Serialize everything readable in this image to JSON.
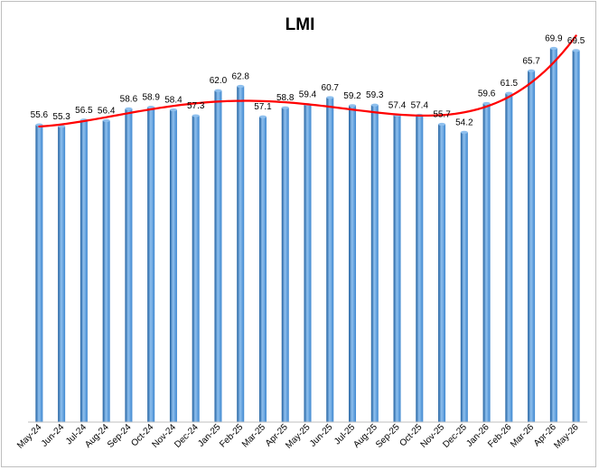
{
  "chart_data": {
    "type": "bar",
    "title": "LMI",
    "xlabel": "",
    "ylabel": "",
    "ylim": [
      0,
      71
    ],
    "grid": false,
    "legend": "none",
    "categories": [
      "May-24",
      "Jun-24",
      "Jul-24",
      "Aug-24",
      "Sep-24",
      "Oct-24",
      "Nov-24",
      "Dec-24",
      "Jan-25",
      "Feb-25",
      "Mar-25",
      "Apr-25",
      "May-25",
      "Jun-25",
      "Jul-25",
      "Aug-25",
      "Sep-25",
      "Oct-25",
      "Nov-25",
      "Dec-25",
      "Jan-26",
      "Feb-26",
      "Mar-26",
      "Apr-26",
      "May-26"
    ],
    "series": [
      {
        "values": [
          55.6,
          55.3,
          56.5,
          56.4,
          58.6,
          58.9,
          58.4,
          57.3,
          62.0,
          62.8,
          57.1,
          58.8,
          59.4,
          60.7,
          59.2,
          59.3,
          57.4,
          57.4,
          55.7,
          54.2,
          59.6,
          61.5,
          65.7,
          69.9,
          69.5
        ],
        "value_labels": [
          "55.6",
          "55.3",
          "56.5",
          "56.4",
          "58.6",
          "58.9",
          "58.4",
          "57.3",
          "62.0",
          "62.8",
          "57.1",
          "58.8",
          "59.4",
          "60.7",
          "59.2",
          "59.3",
          "57.4",
          "57.4",
          "55.7",
          "54.2",
          "59.6",
          "61.5",
          "65.7",
          "69.9",
          "69.5"
        ]
      }
    ],
    "trendline": {
      "type": "polynomial",
      "color": "#ff0000"
    },
    "colors": {
      "bar": "#3f88d0",
      "bar_light": "#8fc0ee",
      "bar_dark": "#1f5f9f",
      "trendline": "#ff0000",
      "axis": "#bfbfbf"
    }
  }
}
